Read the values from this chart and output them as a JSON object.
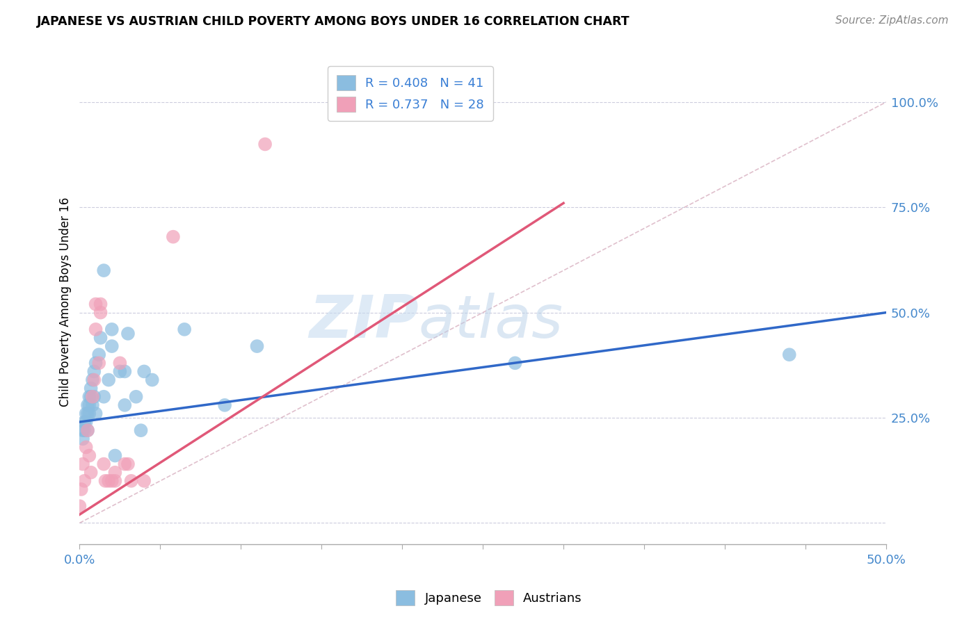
{
  "title": "JAPANESE VS AUSTRIAN CHILD POVERTY AMONG BOYS UNDER 16 CORRELATION CHART",
  "source": "Source: ZipAtlas.com",
  "ylabel": "Child Poverty Among Boys Under 16",
  "xlim": [
    0.0,
    0.5
  ],
  "ylim": [
    -0.05,
    1.1
  ],
  "legend_r_japanese": "R = 0.408",
  "legend_n_japanese": "N = 41",
  "legend_r_austrians": "R = 0.737",
  "legend_n_austrians": "N = 28",
  "japanese_color": "#8BBDE0",
  "austrian_color": "#F0A0B8",
  "japanese_line_color": "#3068C8",
  "austrian_line_color": "#E05878",
  "diagonal_color": "#D8B0C0",
  "watermark_zip": "ZIP",
  "watermark_atlas": "atlas",
  "background_color": "#FFFFFF",
  "japanese_scatter": [
    [
      0.002,
      0.2
    ],
    [
      0.002,
      0.22
    ],
    [
      0.003,
      0.24
    ],
    [
      0.003,
      0.22
    ],
    [
      0.004,
      0.26
    ],
    [
      0.004,
      0.24
    ],
    [
      0.005,
      0.28
    ],
    [
      0.005,
      0.22
    ],
    [
      0.005,
      0.26
    ],
    [
      0.006,
      0.3
    ],
    [
      0.006,
      0.28
    ],
    [
      0.006,
      0.26
    ],
    [
      0.007,
      0.32
    ],
    [
      0.007,
      0.3
    ],
    [
      0.008,
      0.34
    ],
    [
      0.008,
      0.28
    ],
    [
      0.009,
      0.36
    ],
    [
      0.009,
      0.3
    ],
    [
      0.01,
      0.38
    ],
    [
      0.01,
      0.26
    ],
    [
      0.012,
      0.4
    ],
    [
      0.013,
      0.44
    ],
    [
      0.015,
      0.6
    ],
    [
      0.015,
      0.3
    ],
    [
      0.018,
      0.34
    ],
    [
      0.02,
      0.42
    ],
    [
      0.02,
      0.46
    ],
    [
      0.022,
      0.16
    ],
    [
      0.025,
      0.36
    ],
    [
      0.028,
      0.36
    ],
    [
      0.028,
      0.28
    ],
    [
      0.03,
      0.45
    ],
    [
      0.035,
      0.3
    ],
    [
      0.038,
      0.22
    ],
    [
      0.04,
      0.36
    ],
    [
      0.045,
      0.34
    ],
    [
      0.065,
      0.46
    ],
    [
      0.09,
      0.28
    ],
    [
      0.11,
      0.42
    ],
    [
      0.27,
      0.38
    ],
    [
      0.44,
      0.4
    ]
  ],
  "austrian_scatter": [
    [
      0.0,
      0.04
    ],
    [
      0.001,
      0.08
    ],
    [
      0.002,
      0.14
    ],
    [
      0.003,
      0.1
    ],
    [
      0.004,
      0.18
    ],
    [
      0.005,
      0.22
    ],
    [
      0.006,
      0.16
    ],
    [
      0.007,
      0.12
    ],
    [
      0.008,
      0.3
    ],
    [
      0.009,
      0.34
    ],
    [
      0.01,
      0.52
    ],
    [
      0.01,
      0.46
    ],
    [
      0.012,
      0.38
    ],
    [
      0.013,
      0.5
    ],
    [
      0.013,
      0.52
    ],
    [
      0.015,
      0.14
    ],
    [
      0.016,
      0.1
    ],
    [
      0.018,
      0.1
    ],
    [
      0.02,
      0.1
    ],
    [
      0.022,
      0.1
    ],
    [
      0.022,
      0.12
    ],
    [
      0.025,
      0.38
    ],
    [
      0.028,
      0.14
    ],
    [
      0.03,
      0.14
    ],
    [
      0.032,
      0.1
    ],
    [
      0.04,
      0.1
    ],
    [
      0.058,
      0.68
    ],
    [
      0.115,
      0.9
    ]
  ],
  "japanese_trendline_x": [
    0.0,
    0.5
  ],
  "japanese_trendline_y": [
    0.24,
    0.5
  ],
  "austrian_trendline_x": [
    0.0,
    0.3
  ],
  "austrian_trendline_y": [
    0.02,
    0.76
  ]
}
